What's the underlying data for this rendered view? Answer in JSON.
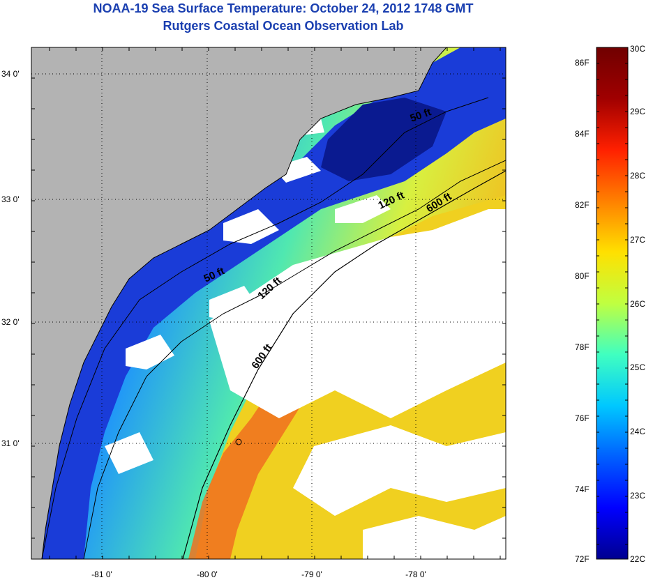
{
  "title_line1": "NOAA-19 Sea Surface Temperature:  October 24, 2012 1748 GMT",
  "title_line2": "Rutgers Coastal Ocean Observation Lab",
  "map": {
    "lat_ticks": [
      {
        "label": "34 0'",
        "lat": 34.0
      },
      {
        "label": "33 0'",
        "lat": 33.0
      },
      {
        "label": "32 0'",
        "lat": 32.0
      },
      {
        "label": "31 0'",
        "lat": 31.0
      }
    ],
    "lon_ticks": [
      {
        "label": "-81 0'",
        "lon": -81.0
      },
      {
        "label": "-80 0'",
        "lon": -80.0
      },
      {
        "label": "-79 0'",
        "lon": -79.0
      },
      {
        "label": "-78 0'",
        "lon": -78.0
      }
    ],
    "contour_labels": [
      "50 ft",
      "50 ft",
      "120 ft",
      "120 ft",
      "600 ft",
      "600 ft"
    ],
    "colors": {
      "land": "#b3b3b3",
      "cloud": "#ffffff"
    }
  },
  "colorbar": {
    "celsius_labels": [
      "30C",
      "29C",
      "28C",
      "27C",
      "26C",
      "25C",
      "24C",
      "23C",
      "22C"
    ],
    "fahrenheit_labels": [
      "86F",
      "84F",
      "82F",
      "80F",
      "78F",
      "76F",
      "74F",
      "72F"
    ],
    "gradient": [
      "#000090",
      "#0000ff",
      "#0060ff",
      "#00c8ff",
      "#40ffc0",
      "#c0ff40",
      "#ffe000",
      "#ff8000",
      "#ff2000",
      "#a00000",
      "#700000"
    ]
  }
}
